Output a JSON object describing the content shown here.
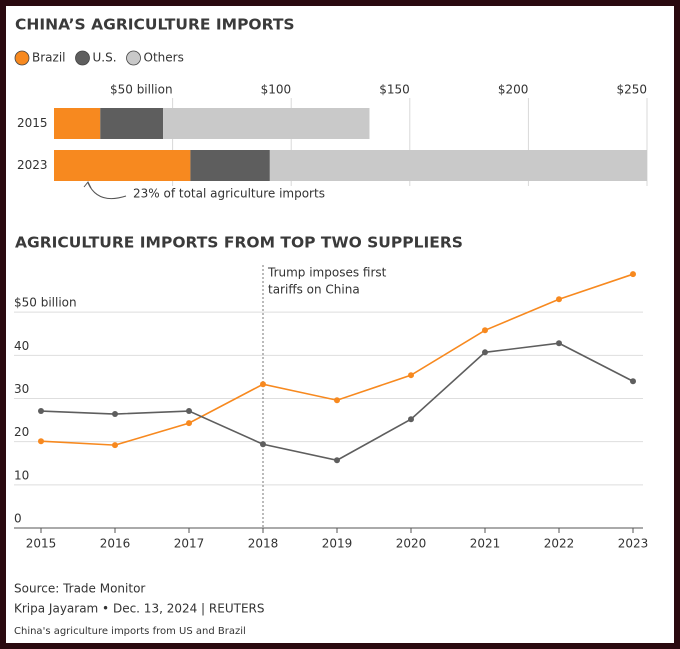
{
  "chart_data": [
    {
      "type": "stacked-bar-horizontal",
      "title": "CHINA’S AGRICULTURE IMPORTS",
      "categories": [
        "2015",
        "2023"
      ],
      "series": [
        {
          "name": "Brazil",
          "color": "#f7891f",
          "values": [
            19.5,
            57.5
          ]
        },
        {
          "name": "U.S.",
          "color": "#5e5e5e",
          "values": [
            26.5,
            33.5
          ]
        },
        {
          "name": "Others",
          "color": "#c9c9c9",
          "values": [
            87,
            159
          ]
        }
      ],
      "xlim": [
        0,
        250
      ],
      "xticks": [
        {
          "value": 50,
          "label": "$50 billion"
        },
        {
          "value": 100,
          "label": "$100"
        },
        {
          "value": 150,
          "label": "$150"
        },
        {
          "value": 200,
          "label": "$200"
        },
        {
          "value": 250,
          "label": "$250"
        }
      ],
      "grid": true,
      "annotation": "23% of total agriculture imports"
    },
    {
      "type": "line",
      "title": "AGRICULTURE IMPORTS FROM TOP TWO SUPPLIERS",
      "x": [
        2015,
        2016,
        2017,
        2018,
        2019,
        2020,
        2021,
        2022,
        2023
      ],
      "series": [
        {
          "color": "#f7891f",
          "values": [
            20.1,
            19.2,
            24.3,
            33.3,
            29.6,
            35.4,
            45.8,
            53,
            58.8
          ]
        },
        {
          "color": "#5e5e5e",
          "values": [
            27.1,
            26.4,
            27.1,
            19.4,
            15.7,
            25.2,
            40.7,
            42.8,
            34
          ]
        }
      ],
      "xlim": [
        2015,
        2023
      ],
      "xticks": [
        2015,
        2016,
        2017,
        2018,
        2019,
        2020,
        2021,
        2022,
        2023
      ],
      "ylim": [
        0,
        60
      ],
      "yticks": [
        0,
        10,
        20,
        30,
        40,
        {
          "value": 50,
          "label": "$50 billion"
        }
      ],
      "grid": true,
      "annotation": {
        "x": 2018,
        "lines": [
          "Trump imposes first",
          "tariffs on China"
        ]
      }
    }
  ],
  "footer": {
    "source": "Source: Trade Monitor",
    "credit": "Kripa Jayaram • Dec. 13, 2024 | REUTERS",
    "caption": "China's agriculture imports from US and Brazil"
  }
}
